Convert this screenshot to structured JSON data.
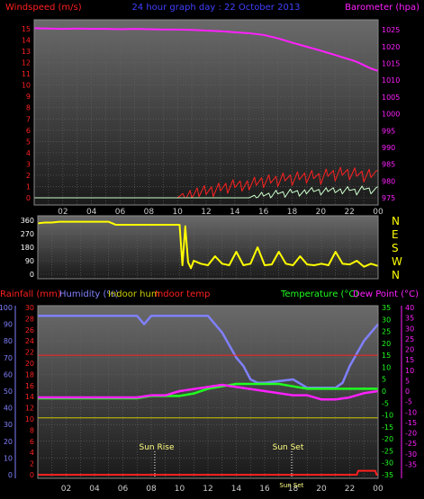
{
  "header": {
    "left": "Windspeed (m/s)",
    "center": "24 hour graph day : 22 October 2013",
    "right": "Barometer (hpa)"
  },
  "panel3_header": {
    "rainfall": "Rainfall (mm)",
    "humidity": "Humidity (%)",
    "indoor_hum": "Indoor hum",
    "indoor_temp": "Indoor temp",
    "temperature": "Temperature (°C)",
    "dew_point": "Dew Point (°C)"
  },
  "annotations": {
    "sun_rise": "Sun Rise",
    "sun_set": "Sun Set",
    "sun_set_axis": "Sun Set"
  },
  "x_ticks": [
    "02",
    "04",
    "06",
    "08",
    "10",
    "12",
    "14",
    "16",
    "18",
    "20",
    "22",
    "00"
  ],
  "colors": {
    "wind": "#ff2020",
    "gust": "#ccffcc",
    "barometer": "#ff20ff",
    "direction": "#ffff00",
    "humidity": "#8080ff",
    "temperature": "#20ff20",
    "dew_point": "#ff20ff",
    "indoor_temp": "#ff2020",
    "indoor_hum": "#cccc00",
    "rainfall": "#ff2020",
    "grid": "#666666"
  },
  "chart_data": [
    {
      "type": "line",
      "id": "wind-baro",
      "y_left": {
        "label": "Windspeed (m/s)",
        "min": 0,
        "max": 15,
        "ticks": [
          0,
          1,
          2,
          3,
          4,
          5,
          6,
          7,
          8,
          9,
          10,
          11,
          12,
          13,
          14,
          15
        ]
      },
      "y_right": {
        "label": "Barometer (hpa)",
        "min": 975,
        "max": 1028,
        "ticks": [
          975,
          980,
          985,
          990,
          995,
          1000,
          1005,
          1010,
          1015,
          1020,
          1025
        ]
      },
      "x_hours": [
        0,
        2,
        4,
        6,
        8,
        10,
        12,
        14,
        16,
        18,
        20,
        22,
        24
      ],
      "series": [
        {
          "name": "Barometer",
          "axis": "right",
          "x": [
            0,
            1,
            2,
            3,
            4,
            5,
            6,
            7,
            8,
            9,
            10,
            11,
            12,
            13,
            14,
            15,
            16,
            17,
            18,
            19,
            20,
            21,
            22,
            22.5,
            23,
            23.5,
            24
          ],
          "y": [
            1025.5,
            1025.4,
            1025.3,
            1025.4,
            1025.3,
            1025.3,
            1025.2,
            1025.3,
            1025.2,
            1025.1,
            1025.1,
            1025.0,
            1024.8,
            1024.6,
            1024.3,
            1024.0,
            1023.5,
            1022.5,
            1021.2,
            1020.0,
            1018.8,
            1017.5,
            1016.2,
            1015.5,
            1014.5,
            1013.5,
            1012.8
          ]
        },
        {
          "name": "Windspeed",
          "axis": "left",
          "x": [
            0,
            10,
            10.5,
            11,
            11.5,
            12,
            12.5,
            13,
            13.5,
            14,
            14.5,
            15,
            15.5,
            16,
            16.5,
            17,
            17.5,
            18,
            18.5,
            19,
            19.5,
            20,
            20.5,
            21,
            21.5,
            22,
            22.5,
            23,
            23.5,
            24
          ],
          "y": [
            0,
            0,
            0.5,
            0.8,
            1.0,
            1.2,
            1.0,
            1.5,
            1.3,
            1.8,
            1.5,
            1.6,
            2.0,
            1.8,
            2.2,
            1.9,
            2.4,
            2.0,
            2.5,
            2.2,
            2.6,
            2.1,
            2.8,
            2.4,
            2.9,
            2.5,
            2.8,
            2.3,
            2.7,
            2.4
          ]
        },
        {
          "name": "Gust",
          "axis": "left",
          "x": [
            0,
            15,
            15.5,
            16,
            16.5,
            17,
            17.5,
            18,
            18.5,
            19,
            19.5,
            20,
            20.5,
            21,
            21.5,
            22,
            22.5,
            23,
            23.5,
            24
          ],
          "y": [
            0,
            0,
            0.3,
            0.6,
            0.4,
            0.8,
            0.5,
            0.9,
            0.6,
            0.8,
            1.0,
            0.7,
            1.0,
            0.9,
            0.8,
            1.1,
            0.7,
            1.2,
            0.8,
            1.0
          ]
        }
      ]
    },
    {
      "type": "line",
      "id": "direction",
      "y_left": {
        "min": 0,
        "max": 360,
        "ticks": [
          0,
          90,
          180,
          270,
          360
        ]
      },
      "y_right": {
        "ticks": [
          "N",
          "W",
          "S",
          "E",
          "N"
        ]
      },
      "series": [
        {
          "name": "Wind direction",
          "x": [
            0,
            0.5,
            1,
            1.5,
            2,
            3,
            4,
            5,
            5.5,
            6,
            7,
            8,
            9,
            10,
            10.2,
            10.4,
            10.6,
            10.8,
            11,
            11.5,
            12,
            12.5,
            13,
            13.5,
            14,
            14.5,
            15,
            15.5,
            16,
            16.5,
            17,
            17.5,
            18,
            18.5,
            19,
            19.5,
            20,
            20.5,
            21,
            21.5,
            22,
            22.5,
            23,
            23.5,
            24
          ],
          "y": [
            340,
            345,
            345,
            350,
            350,
            350,
            350,
            350,
            330,
            330,
            330,
            330,
            330,
            330,
            60,
            320,
            80,
            40,
            90,
            70,
            60,
            120,
            70,
            60,
            150,
            60,
            70,
            180,
            60,
            65,
            150,
            70,
            60,
            120,
            65,
            60,
            70,
            60,
            150,
            70,
            65,
            90,
            50,
            70,
            55
          ]
        }
      ]
    },
    {
      "type": "line",
      "id": "temp-hum-rain",
      "y_left": {
        "label": "Humidity (%)",
        "min": 0,
        "max": 100,
        "ticks": [
          0,
          10,
          20,
          30,
          40,
          50,
          60,
          70,
          80,
          90,
          100
        ]
      },
      "y_rain": {
        "label": "Rainfall (mm)",
        "min": 0,
        "max": 30,
        "ticks": [
          0,
          2,
          4,
          6,
          8,
          10,
          12,
          14,
          16,
          18,
          20,
          22,
          24,
          26,
          28,
          30
        ]
      },
      "y_right_temp": {
        "label": "Temperature (°C)",
        "min": -35,
        "max": 35,
        "ticks": [
          -35,
          -30,
          -25,
          -20,
          -15,
          -10,
          -5,
          0,
          5,
          10,
          15,
          20,
          25,
          30,
          35
        ]
      },
      "y_right_dew": {
        "label": "Dew Point (°C)",
        "min": -40,
        "max": 40,
        "ticks": [
          -35,
          -30,
          -25,
          -20,
          -15,
          -10,
          -5,
          0,
          5,
          10,
          15,
          20,
          25,
          30,
          35,
          40
        ]
      },
      "series": [
        {
          "name": "Humidity",
          "axis": "humidity",
          "x": [
            0,
            1,
            2,
            3,
            4,
            5,
            6,
            7,
            7.5,
            8,
            9,
            10,
            11,
            12,
            13,
            14,
            14.5,
            15,
            15.5,
            16,
            17,
            18,
            19,
            20,
            21,
            21.5,
            22,
            23,
            24
          ],
          "y": [
            95,
            95,
            95,
            95,
            95,
            95,
            95,
            95,
            90,
            95,
            95,
            95,
            95,
            95,
            85,
            70,
            65,
            57,
            55,
            55,
            56,
            57,
            52,
            52,
            52,
            55,
            65,
            80,
            90
          ]
        },
        {
          "name": "Temperature",
          "axis": "temp",
          "x": [
            0,
            1,
            2,
            3,
            4,
            5,
            6,
            7,
            8,
            9,
            10,
            11,
            12,
            13,
            14,
            15,
            16,
            17,
            18,
            19,
            20,
            21,
            22,
            23,
            24
          ],
          "y": [
            -3,
            -3,
            -3,
            -3,
            -3,
            -3,
            -3,
            -3,
            -2,
            -2,
            -2,
            -1,
            1,
            2,
            3,
            3,
            3,
            3,
            2,
            1,
            1,
            1,
            1,
            1,
            1
          ]
        },
        {
          "name": "Dew Point",
          "axis": "dew",
          "x": [
            0,
            2,
            4,
            6,
            7,
            8,
            9,
            10,
            11,
            12,
            13,
            14,
            15,
            16,
            17,
            18,
            19,
            19.5,
            20,
            21,
            22,
            23,
            24
          ],
          "y": [
            -3,
            -3,
            -3,
            -3,
            -3,
            -2,
            -2,
            0,
            1,
            2,
            3,
            2,
            1,
            0,
            -1,
            -2,
            -2,
            -3,
            -4,
            -4,
            -3,
            -1,
            0
          ]
        },
        {
          "name": "Indoor temp",
          "axis": "temp",
          "x": [
            0,
            24
          ],
          "y": [
            15,
            15
          ]
        },
        {
          "name": "Indoor hum",
          "axis": "humidity",
          "x": [
            0,
            24
          ],
          "y": [
            34,
            34
          ]
        },
        {
          "name": "Rainfall",
          "axis": "rain",
          "x": [
            0,
            22.5,
            22.6,
            23,
            23.8,
            23.9,
            24
          ],
          "y": [
            0,
            0,
            0.7,
            0.7,
            0.7,
            0,
            0
          ]
        }
      ]
    }
  ]
}
